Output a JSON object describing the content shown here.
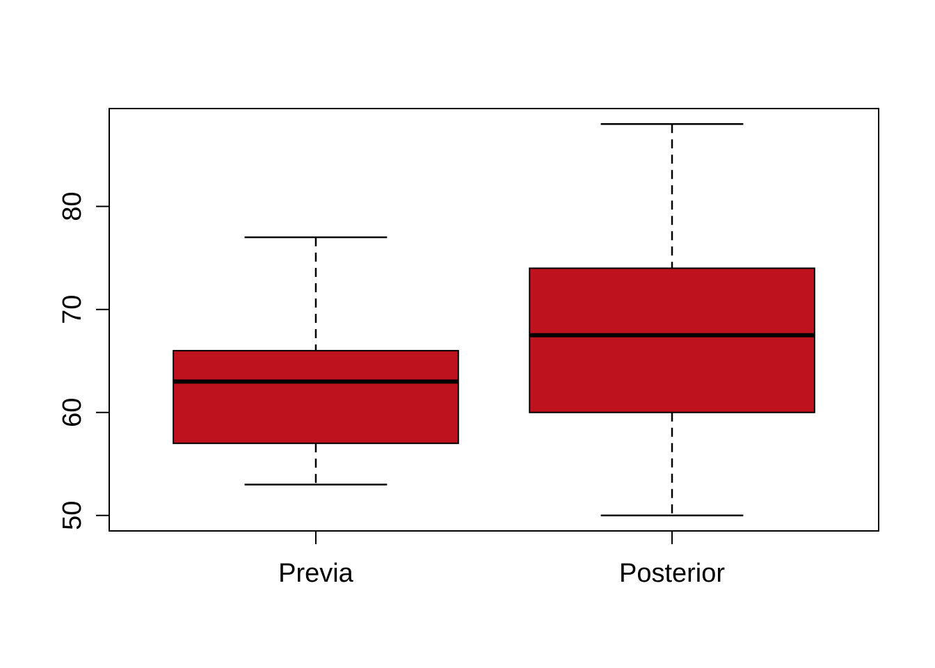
{
  "figure": {
    "background": "#ffffff"
  },
  "chart_data": {
    "type": "boxplot",
    "title": "",
    "xlabel": "",
    "ylabel": "",
    "orientation": "vertical",
    "categories": [
      "Previa",
      "Posterior"
    ],
    "series": [
      {
        "name": "Previa",
        "whisker_low": 53,
        "q1": 57,
        "median": 63,
        "q3": 66,
        "whisker_high": 77
      },
      {
        "name": "Posterior",
        "whisker_low": 50,
        "q1": 60,
        "median": 67.5,
        "q3": 74,
        "whisker_high": 88
      }
    ],
    "y_ticks": [
      50,
      60,
      70,
      80
    ],
    "ylim": [
      48.5,
      89.5
    ],
    "grid": false,
    "legend": "none",
    "colors": {
      "box_fill": "#BE121E",
      "box_border": "#000000",
      "median": "#000000",
      "whisker": "#000000",
      "staple": "#000000",
      "axis": "#000000",
      "tick_label": "#000000",
      "background": "#ffffff"
    }
  }
}
